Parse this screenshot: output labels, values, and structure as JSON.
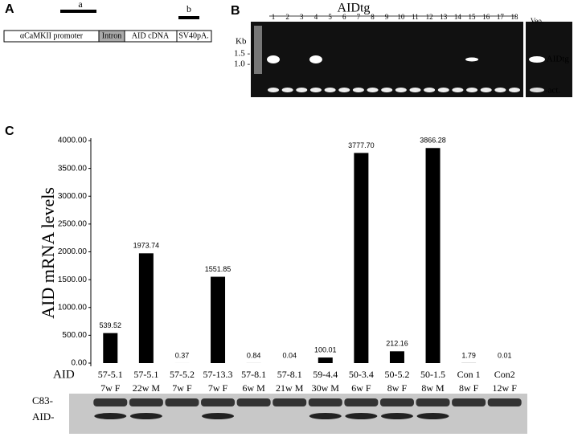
{
  "panel_a": {
    "label": "A",
    "probe_a": "a",
    "probe_b": "b",
    "segments": [
      "αCaMKII promoter",
      "Intron",
      "AID cDNA",
      "SV40pA."
    ]
  },
  "panel_b": {
    "label": "B",
    "title": "AIDtg",
    "kb": "Kb",
    "markers": [
      "1.5 -",
      "1.0 -"
    ],
    "lanes": [
      "1",
      "2",
      "3",
      "4",
      "5",
      "6",
      "7",
      "8",
      "9",
      "10",
      "11",
      "12",
      "13",
      "14",
      "15",
      "16",
      "17",
      "18"
    ],
    "vector_lane": "Veo.",
    "band_labels": [
      "- AIDtg",
      "-act."
    ]
  },
  "chart_data": {
    "type": "bar",
    "panel_label": "C",
    "y_label": "AID mRNA levels",
    "row_label": "AID",
    "categories": [
      "57-5.1",
      "57-5.1",
      "57-5.2",
      "57-13.3",
      "57-8.1",
      "57-8.1",
      "59-4.4",
      "50-3.4",
      "50-5.2",
      "50-1.5",
      "Con 1",
      "Con2"
    ],
    "category_details": [
      "7w F",
      "22w M",
      "7w F",
      "7w F",
      "6w M",
      "21w M",
      "30w M",
      "6w F",
      "8w F",
      "8w M",
      "8w F",
      "12w F"
    ],
    "values": [
      539.52,
      1973.74,
      0.37,
      1551.85,
      0.84,
      0.04,
      100.01,
      3777.7,
      212.16,
      3866.28,
      1.79,
      0.01
    ],
    "value_labels": [
      "539.52",
      "1973.74",
      "0.37",
      "1551.85",
      "0.84",
      "0.04",
      "100.01",
      "3777.70",
      "212.16",
      "3866.28",
      "1.79",
      "0.01"
    ],
    "color": "#000000",
    "ylim": [
      0,
      4000
    ],
    "yticks": [
      {
        "value": 0,
        "label": "0.00"
      },
      {
        "value": 500,
        "label": "500.00"
      },
      {
        "value": 1000,
        "label": "1000.00"
      },
      {
        "value": 1500,
        "label": "1500.00"
      },
      {
        "value": 2000,
        "label": "2000.00"
      },
      {
        "value": 2500,
        "label": "2500.00"
      },
      {
        "value": 3000,
        "label": "3000.00"
      },
      {
        "value": 3500,
        "label": "3500.00"
      },
      {
        "value": 4000,
        "label": "4000.00"
      }
    ],
    "blot_labels": [
      "C83-",
      "AID-"
    ]
  }
}
